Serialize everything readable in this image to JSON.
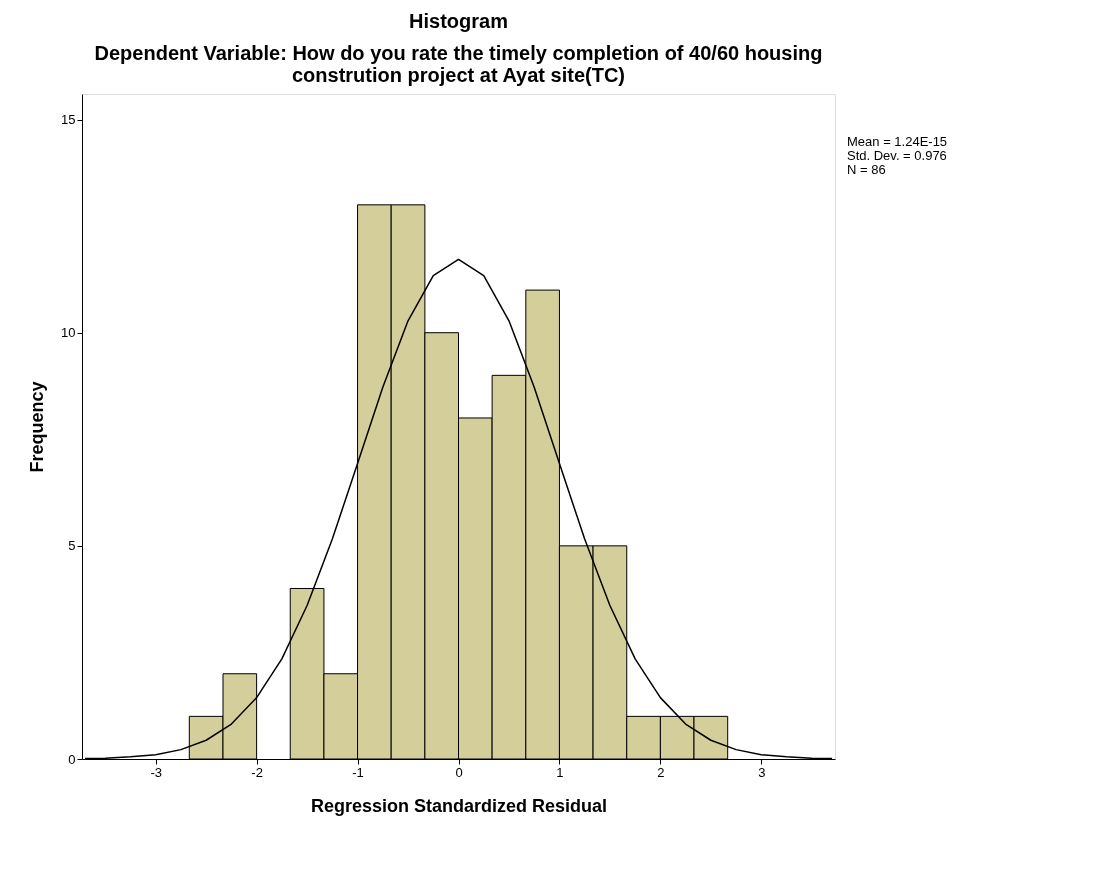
{
  "chart_data": {
    "type": "histogram",
    "title": "Histogram",
    "subtitle": "Dependent Variable: How do you rate the timely completion of 40/60 housing\nconstrution project at Ayat site(TC)",
    "xlabel": "Regression Standardized Residual",
    "ylabel": "Frequency",
    "bins": [
      -2.667,
      -2.333,
      -2,
      -1.667,
      -1.333,
      -1,
      -0.667,
      -0.333,
      0,
      0.333,
      0.667,
      1,
      1.333,
      1.667,
      2,
      2.333,
      2.667
    ],
    "values": [
      1,
      2,
      0,
      4,
      2,
      13,
      13,
      10,
      8,
      9,
      11,
      5,
      5,
      1,
      1,
      1
    ],
    "color": "#d4cf9a",
    "series": [
      {
        "type": "line",
        "color": "#000000",
        "x": [
          -3.7,
          -3.5,
          -3.25,
          -3,
          -2.75,
          -2.5,
          -2.25,
          -2,
          -1.75,
          -1.5,
          -1.25,
          -1,
          -0.75,
          -0.5,
          -0.25,
          0,
          0.25,
          0.5,
          0.75,
          1,
          1.25,
          1.5,
          1.75,
          2,
          2.25,
          2.5,
          2.75,
          3,
          3.25,
          3.5,
          3.7
        ],
        "values": [
          0.01,
          0.02,
          0.05,
          0.1,
          0.22,
          0.44,
          0.82,
          1.44,
          2.35,
          3.6,
          5.16,
          6.93,
          8.72,
          10.28,
          11.34,
          11.72,
          11.34,
          10.28,
          8.72,
          6.93,
          5.16,
          3.6,
          2.35,
          1.44,
          0.82,
          0.44,
          0.22,
          0.1,
          0.05,
          0.02,
          0.01
        ]
      }
    ],
    "xlim": [
      -3.73,
      3.73
    ],
    "ylim": [
      0,
      15.6
    ],
    "xticks": [
      -3,
      -2,
      -1,
      0,
      1,
      2,
      3
    ],
    "yticks": [
      0,
      5,
      10,
      15
    ],
    "grid": false,
    "annotations": [
      "Mean = 1.24E-15",
      "Std. Dev. = 0.976",
      "N = 86"
    ]
  }
}
